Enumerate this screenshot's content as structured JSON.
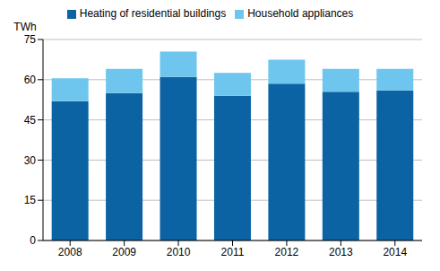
{
  "chart_data": {
    "type": "bar",
    "y_label": "TWh",
    "categories": [
      "2008",
      "2009",
      "2010",
      "2011",
      "2012",
      "2013",
      "2014"
    ],
    "series": [
      {
        "name": "Heating of residential buildings",
        "color": "#0b63a3",
        "values": [
          52,
          55,
          61,
          54,
          58.5,
          55.5,
          56
        ]
      },
      {
        "name": "Household appliances",
        "color": "#6ec6ee",
        "values": [
          8.5,
          9,
          9.5,
          8.5,
          9,
          8.5,
          8
        ]
      }
    ],
    "ylim": [
      0,
      75
    ],
    "yticks": [
      0,
      15,
      30,
      45,
      60,
      75
    ],
    "stacked": true,
    "grid": true,
    "legend": "top"
  }
}
